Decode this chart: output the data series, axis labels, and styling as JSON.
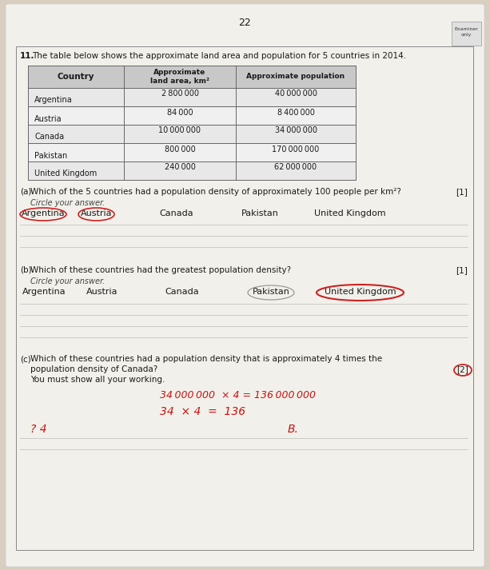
{
  "page_number": "22",
  "question_number": "11",
  "question_text": "The table below shows the approximate land area and population for 5 countries in 2014.",
  "table_col0_header": "Country",
  "table_col1_header": "Approximate\nland area, km²",
  "table_col2_header": "Approximate population",
  "table_rows": [
    [
      "Argentina",
      "2800000",
      "40000000"
    ],
    [
      "Austria",
      "84000",
      "8400000"
    ],
    [
      "Canada",
      "10000000",
      "34000000"
    ],
    [
      "Pakistan",
      "800000",
      "170000000"
    ],
    [
      "United Kingdom",
      "240000",
      "62000000"
    ]
  ],
  "table_land_area_fmt": [
    "2 800 000",
    "84 000",
    "10 000 000",
    "800 000",
    "240 000"
  ],
  "table_population_fmt": [
    "40 000 000",
    "8 400 000",
    "34 000 000",
    "170 000 000",
    "62 000 000"
  ],
  "part_a_label": "(a)",
  "part_a_text": "Which of the 5 countries had a population density of approximately 100 people per km²?",
  "part_a_mark": "[1]",
  "part_a_instruction": "Circle your answer.",
  "part_a_countries": [
    "Argentina",
    "Austria",
    "Canada",
    "Pakistan",
    "United Kingdom"
  ],
  "part_a_circled": [
    "Argentina",
    "Austria"
  ],
  "part_b_label": "(b)",
  "part_b_text": "Which of these countries had the greatest population density?",
  "part_b_mark": "[1]",
  "part_b_instruction": "Circle your answer.",
  "part_b_countries": [
    "Argentina",
    "Austria",
    "Canada",
    "Pakistan",
    "United Kingdom"
  ],
  "part_b_circled_thin": [
    "Pakistan"
  ],
  "part_b_circled_red": [
    "United Kingdom"
  ],
  "part_c_label": "(c)",
  "part_c_text1": "Which of these countries had a population density that is approximately 4 times the",
  "part_c_text2": "population density of Canada?",
  "part_c_instruction": "You must show all your working.",
  "part_c_mark": "[2]",
  "hw_line1": "34 000 000  × 4 = 136 000 000",
  "hw_line2": "34  × 4  =  136",
  "hw_ans_left": "? 4",
  "hw_ans_right": "B.",
  "bg_color": "#d8cfc0",
  "page_color": "#f2f0ea",
  "table_header_bg": "#c8c8c8",
  "table_row_even": "#e8e8e8",
  "table_row_odd": "#f0f0f0",
  "table_line_color": "#666666",
  "text_color": "#1a1a1a",
  "dim_text_color": "#444444",
  "red_circle_color": "#cc2222",
  "thin_circle_color": "#999999",
  "hw_color": "#cc1111",
  "line_color": "#bbbbbb",
  "examiner_box_bg": "#e0e0e0",
  "examiner_border": "#999999"
}
